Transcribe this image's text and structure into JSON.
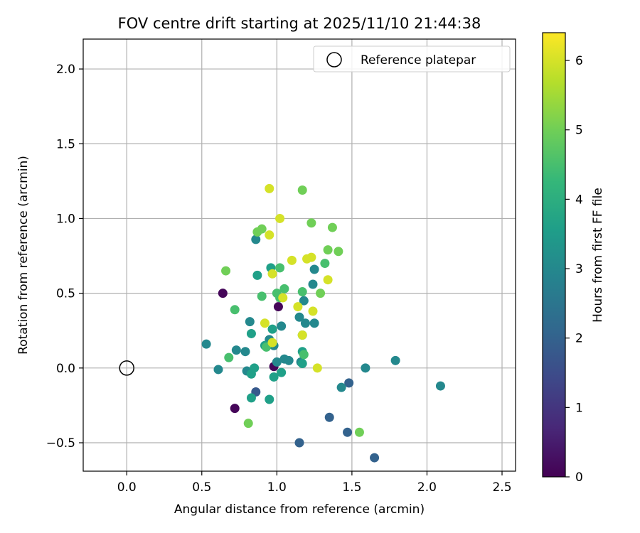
{
  "chart_data": {
    "type": "scatter",
    "title": "FOV centre drift starting at 2025/11/10 21:44:38",
    "xlabel": "Angular distance from reference (arcmin)",
    "ylabel": "Rotation from reference (arcmin)",
    "xlim": [
      -0.29,
      2.59
    ],
    "ylim": [
      -0.69,
      2.2
    ],
    "xticks": [
      0.0,
      0.5,
      1.0,
      1.5,
      2.0,
      2.5
    ],
    "xtick_labels": [
      "0.0",
      "0.5",
      "1.0",
      "1.5",
      "2.0",
      "2.5"
    ],
    "yticks": [
      -0.5,
      0.0,
      0.5,
      1.0,
      1.5,
      2.0
    ],
    "ytick_labels": [
      "−0.5",
      "0.0",
      "0.5",
      "1.0",
      "1.5",
      "2.0"
    ],
    "grid": true,
    "legend": {
      "label": "Reference platepar",
      "position": "top-right"
    },
    "reference_point": {
      "x": 0.0,
      "y": 0.0
    },
    "colorbar": {
      "label": "Hours from first FF file",
      "range": [
        0,
        6.4
      ],
      "ticks": [
        0,
        1,
        2,
        3,
        4,
        5,
        6
      ],
      "tick_labels": [
        "0",
        "1",
        "2",
        "3",
        "4",
        "5",
        "6"
      ],
      "colormap": "viridis"
    },
    "colormap_stops": [
      "#440154",
      "#482878",
      "#3e4989",
      "#31688e",
      "#26828e",
      "#1f9e89",
      "#35b779",
      "#6ece58",
      "#b5de2b",
      "#fde725"
    ],
    "points": [
      {
        "x": 0.64,
        "y": 0.5,
        "c": 0.1
      },
      {
        "x": 0.72,
        "y": -0.27,
        "c": 0.1
      },
      {
        "x": 1.01,
        "y": 0.41,
        "c": 0.1
      },
      {
        "x": 0.98,
        "y": 0.01,
        "c": 0.1
      },
      {
        "x": 0.86,
        "y": -0.16,
        "c": 1.8
      },
      {
        "x": 1.35,
        "y": -0.33,
        "c": 2.0
      },
      {
        "x": 1.47,
        "y": -0.43,
        "c": 2.0
      },
      {
        "x": 1.48,
        "y": -0.1,
        "c": 2.0
      },
      {
        "x": 1.15,
        "y": -0.5,
        "c": 2.0
      },
      {
        "x": 1.65,
        "y": -0.6,
        "c": 2.0
      },
      {
        "x": 0.53,
        "y": 0.16,
        "c": 3.0
      },
      {
        "x": 0.61,
        "y": -0.01,
        "c": 3.0
      },
      {
        "x": 0.73,
        "y": 0.12,
        "c": 3.0
      },
      {
        "x": 0.8,
        "y": -0.02,
        "c": 3.0
      },
      {
        "x": 0.79,
        "y": 0.11,
        "c": 3.0
      },
      {
        "x": 0.82,
        "y": 0.31,
        "c": 3.0
      },
      {
        "x": 0.86,
        "y": 0.86,
        "c": 3.0
      },
      {
        "x": 0.95,
        "y": 0.19,
        "c": 3.0
      },
      {
        "x": 0.98,
        "y": 0.15,
        "c": 3.0
      },
      {
        "x": 1.0,
        "y": 0.04,
        "c": 3.0
      },
      {
        "x": 1.03,
        "y": 0.28,
        "c": 3.0
      },
      {
        "x": 1.05,
        "y": 0.06,
        "c": 3.0
      },
      {
        "x": 1.08,
        "y": 0.05,
        "c": 3.0
      },
      {
        "x": 1.15,
        "y": 0.34,
        "c": 3.0
      },
      {
        "x": 1.16,
        "y": 0.04,
        "c": 3.0
      },
      {
        "x": 1.18,
        "y": 0.45,
        "c": 3.0
      },
      {
        "x": 1.19,
        "y": 0.3,
        "c": 3.0
      },
      {
        "x": 1.24,
        "y": 0.56,
        "c": 3.0
      },
      {
        "x": 1.25,
        "y": 0.3,
        "c": 3.0
      },
      {
        "x": 1.25,
        "y": 0.66,
        "c": 3.0
      },
      {
        "x": 1.43,
        "y": -0.13,
        "c": 3.0
      },
      {
        "x": 1.59,
        "y": 0.0,
        "c": 3.0
      },
      {
        "x": 1.79,
        "y": 0.05,
        "c": 3.0
      },
      {
        "x": 2.09,
        "y": -0.12,
        "c": 3.0
      },
      {
        "x": 0.83,
        "y": -0.04,
        "c": 3.6
      },
      {
        "x": 0.83,
        "y": -0.2,
        "c": 3.6
      },
      {
        "x": 0.83,
        "y": 0.23,
        "c": 3.6
      },
      {
        "x": 0.85,
        "y": 0.0,
        "c": 3.6
      },
      {
        "x": 0.87,
        "y": 0.62,
        "c": 3.6
      },
      {
        "x": 0.92,
        "y": 0.15,
        "c": 3.6
      },
      {
        "x": 0.95,
        "y": -0.21,
        "c": 3.6
      },
      {
        "x": 0.96,
        "y": 0.67,
        "c": 3.6
      },
      {
        "x": 0.97,
        "y": 0.26,
        "c": 3.6
      },
      {
        "x": 0.98,
        "y": -0.06,
        "c": 3.6
      },
      {
        "x": 1.03,
        "y": -0.03,
        "c": 3.6
      },
      {
        "x": 1.17,
        "y": 0.11,
        "c": 3.6
      },
      {
        "x": 1.17,
        "y": 0.22,
        "c": 3.6
      },
      {
        "x": 1.17,
        "y": 0.03,
        "c": 3.6
      },
      {
        "x": 0.68,
        "y": 0.07,
        "c": 4.5
      },
      {
        "x": 0.72,
        "y": 0.39,
        "c": 4.5
      },
      {
        "x": 0.9,
        "y": 0.48,
        "c": 4.5
      },
      {
        "x": 0.93,
        "y": 0.14,
        "c": 4.5
      },
      {
        "x": 1.0,
        "y": 0.5,
        "c": 4.5
      },
      {
        "x": 1.02,
        "y": 0.47,
        "c": 4.5
      },
      {
        "x": 1.02,
        "y": 0.67,
        "c": 4.5
      },
      {
        "x": 1.05,
        "y": 0.53,
        "c": 4.5
      },
      {
        "x": 1.17,
        "y": 0.51,
        "c": 4.5
      },
      {
        "x": 1.18,
        "y": 0.09,
        "c": 4.5
      },
      {
        "x": 1.32,
        "y": 0.7,
        "c": 4.5
      },
      {
        "x": 0.66,
        "y": 0.65,
        "c": 5.0
      },
      {
        "x": 0.81,
        "y": -0.37,
        "c": 5.0
      },
      {
        "x": 0.87,
        "y": 0.91,
        "c": 5.0
      },
      {
        "x": 0.9,
        "y": 0.93,
        "c": 5.0
      },
      {
        "x": 1.17,
        "y": 1.19,
        "c": 5.0
      },
      {
        "x": 1.23,
        "y": 0.97,
        "c": 5.0
      },
      {
        "x": 1.29,
        "y": 0.5,
        "c": 5.0
      },
      {
        "x": 1.34,
        "y": 0.79,
        "c": 5.0
      },
      {
        "x": 1.37,
        "y": 0.94,
        "c": 5.0
      },
      {
        "x": 1.41,
        "y": 0.78,
        "c": 5.0
      },
      {
        "x": 1.55,
        "y": -0.43,
        "c": 5.0
      },
      {
        "x": 0.92,
        "y": 0.3,
        "c": 6.0
      },
      {
        "x": 0.95,
        "y": 1.2,
        "c": 6.0
      },
      {
        "x": 0.95,
        "y": 0.89,
        "c": 6.0
      },
      {
        "x": 0.97,
        "y": 0.63,
        "c": 6.0
      },
      {
        "x": 0.97,
        "y": 0.17,
        "c": 6.0
      },
      {
        "x": 1.02,
        "y": 1.0,
        "c": 6.0
      },
      {
        "x": 1.04,
        "y": 0.47,
        "c": 6.0
      },
      {
        "x": 1.1,
        "y": 0.72,
        "c": 6.0
      },
      {
        "x": 1.14,
        "y": 0.41,
        "c": 6.0
      },
      {
        "x": 1.17,
        "y": 0.22,
        "c": 6.0
      },
      {
        "x": 1.2,
        "y": 0.73,
        "c": 6.0
      },
      {
        "x": 1.23,
        "y": 0.74,
        "c": 6.0
      },
      {
        "x": 1.24,
        "y": 0.38,
        "c": 6.0
      },
      {
        "x": 1.27,
        "y": 0.0,
        "c": 6.0
      },
      {
        "x": 1.34,
        "y": 0.59,
        "c": 6.0
      }
    ]
  }
}
